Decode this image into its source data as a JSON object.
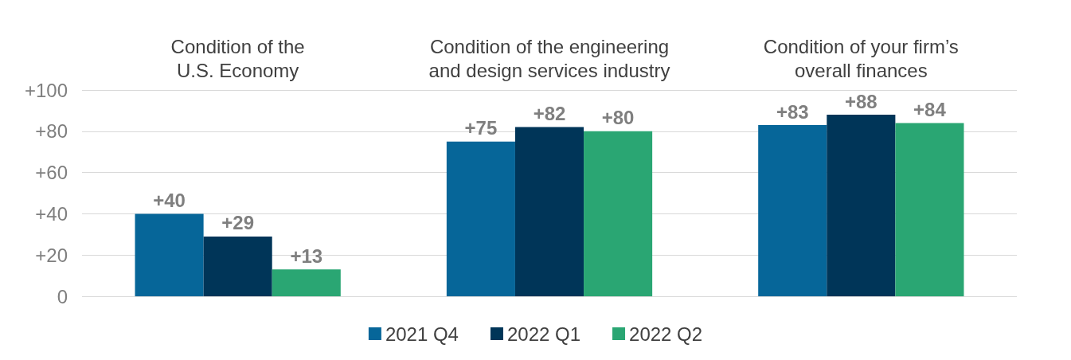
{
  "chart_data": {
    "type": "bar",
    "categories": [
      "Condition of the\nU.S. Economy",
      "Condition of the engineering\nand design services industry",
      "Condition of your firm’s\noverall finances"
    ],
    "series": [
      {
        "name": "2021 Q4",
        "color": "#066699",
        "values": [
          40,
          75,
          83
        ],
        "value_labels": [
          "+40",
          "+75",
          "+83"
        ]
      },
      {
        "name": "2022 Q1",
        "color": "#003558",
        "values": [
          29,
          82,
          88
        ],
        "value_labels": [
          "+29",
          "+82",
          "+88"
        ]
      },
      {
        "name": "2022 Q2",
        "color": "#2aa673",
        "values": [
          13,
          80,
          84
        ],
        "value_labels": [
          "+13",
          "+80",
          "+84"
        ]
      }
    ],
    "ylim": [
      0,
      100
    ],
    "yticks": [
      0,
      {
        "value": 20,
        "label": "+20"
      },
      {
        "value": 40,
        "label": "+40"
      },
      {
        "value": 60,
        "label": "+60"
      },
      {
        "value": 80,
        "label": "+80"
      },
      {
        "value": 100,
        "label": "+100"
      }
    ],
    "grid": "y",
    "legend": "bottom"
  }
}
